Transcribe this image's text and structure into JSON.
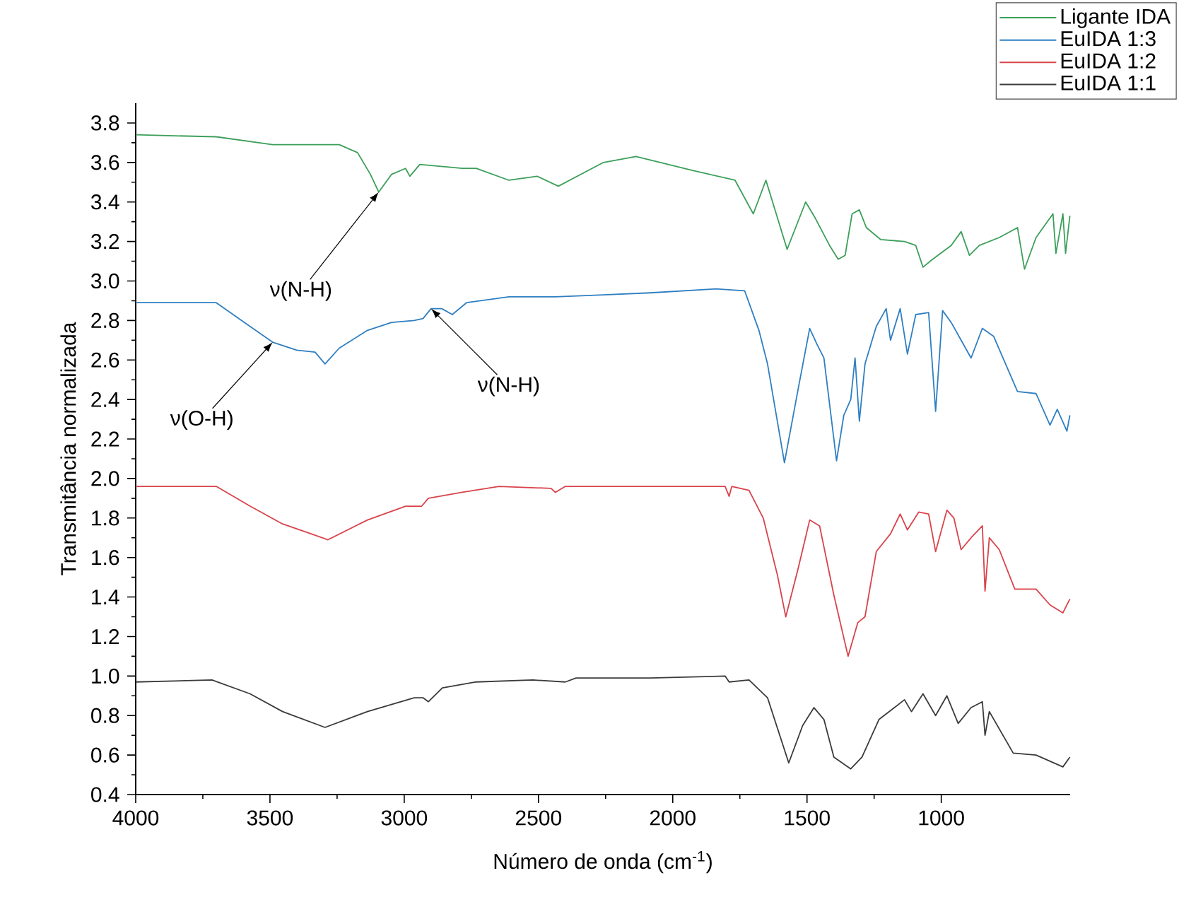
{
  "chart_data": {
    "type": "line",
    "xlabel": "Número de onda (cm$^{-1}$)",
    "ylabel": "Transmitância normalizada",
    "xlim": [
      4000,
      520
    ],
    "ylim": [
      0.4,
      3.9
    ],
    "xticks": [
      4000,
      3500,
      3000,
      2500,
      2000,
      1500,
      1000
    ],
    "yticks": [
      0.4,
      0.6,
      0.8,
      {
        "value": 1,
        "label": "1.0"
      },
      1.2,
      1.4,
      1.6,
      1.8,
      {
        "value": 2,
        "label": "2.0"
      },
      2.2,
      2.4,
      2.6,
      2.8,
      {
        "value": 3,
        "label": "3.0"
      },
      3.2,
      3.4,
      3.6,
      3.8
    ],
    "legend": "top right",
    "series": [
      {
        "name": "Ligante IDA",
        "color": "#3c9f5a",
        "x": [
          4000,
          3700,
          3490,
          3242,
          3174,
          3126,
          3095,
          3047,
          2995,
          2979,
          2942,
          2784,
          2732,
          2610,
          2505,
          2426,
          2258,
          2137,
          1926,
          1768,
          1700,
          1653,
          1574,
          1505,
          1470,
          1416,
          1384,
          1358,
          1332,
          1305,
          1279,
          1226,
          1137,
          1095,
          1068,
          1032,
          963,
          926,
          895,
          858,
          784,
          716,
          690,
          647,
          584,
          573,
          547,
          537,
          521
        ],
        "values": [
          3.74,
          3.73,
          3.69,
          3.69,
          3.65,
          3.54,
          3.45,
          3.54,
          3.57,
          3.53,
          3.59,
          3.57,
          3.57,
          3.51,
          3.53,
          3.48,
          3.6,
          3.63,
          3.56,
          3.51,
          3.34,
          3.51,
          3.16,
          3.4,
          3.32,
          3.18,
          3.11,
          3.13,
          3.34,
          3.36,
          3.27,
          3.21,
          3.2,
          3.18,
          3.07,
          3.11,
          3.18,
          3.25,
          3.13,
          3.18,
          3.22,
          3.27,
          3.06,
          3.22,
          3.34,
          3.14,
          3.34,
          3.14,
          3.33
        ]
      },
      {
        "name": "EuIDA 1:3",
        "color": "#2f7fc1",
        "x": [
          4000,
          3700,
          3595,
          3490,
          3400,
          3332,
          3295,
          3242,
          3137,
          3047,
          2963,
          2930,
          2900,
          2860,
          2821,
          2768,
          2610,
          2437,
          2258,
          2084,
          1837,
          1732,
          1679,
          1647,
          1584,
          1532,
          1490,
          1463,
          1437,
          1390,
          1363,
          1337,
          1321,
          1305,
          1284,
          1242,
          1205,
          1189,
          1153,
          1126,
          1095,
          1047,
          1021,
          995,
          963,
          926,
          889,
          847,
          805,
          716,
          647,
          595,
          568,
          532,
          521
        ],
        "values": [
          2.89,
          2.89,
          2.79,
          2.69,
          2.65,
          2.64,
          2.58,
          2.66,
          2.75,
          2.79,
          2.8,
          2.81,
          2.86,
          2.86,
          2.83,
          2.89,
          2.92,
          2.92,
          2.93,
          2.94,
          2.96,
          2.95,
          2.75,
          2.58,
          2.08,
          2.46,
          2.76,
          2.68,
          2.61,
          2.09,
          2.32,
          2.4,
          2.61,
          2.29,
          2.58,
          2.77,
          2.86,
          2.7,
          2.86,
          2.63,
          2.83,
          2.84,
          2.34,
          2.85,
          2.79,
          2.7,
          2.61,
          2.76,
          2.72,
          2.44,
          2.43,
          2.27,
          2.35,
          2.24,
          2.32
        ]
      },
      {
        "name": "EuIDA 1:2",
        "color": "#d9434b",
        "x": [
          4000,
          3700,
          3574,
          3453,
          3347,
          3284,
          3137,
          2995,
          2935,
          2910,
          2784,
          2647,
          2453,
          2437,
          2400,
          2084,
          1805,
          1790,
          1780,
          1716,
          1663,
          1610,
          1579,
          1532,
          1490,
          1453,
          1400,
          1347,
          1311,
          1284,
          1242,
          1189,
          1153,
          1126,
          1084,
          1047,
          1021,
          979,
          953,
          926,
          889,
          847,
          837,
          821,
          784,
          726,
          647,
          595,
          547,
          521
        ],
        "values": [
          1.96,
          1.96,
          1.86,
          1.77,
          1.72,
          1.69,
          1.79,
          1.86,
          1.86,
          1.9,
          1.93,
          1.96,
          1.95,
          1.93,
          1.96,
          1.96,
          1.96,
          1.91,
          1.96,
          1.94,
          1.8,
          1.51,
          1.3,
          1.55,
          1.79,
          1.76,
          1.41,
          1.1,
          1.27,
          1.3,
          1.63,
          1.72,
          1.82,
          1.74,
          1.83,
          1.82,
          1.63,
          1.84,
          1.8,
          1.64,
          1.7,
          1.76,
          1.43,
          1.7,
          1.64,
          1.44,
          1.44,
          1.36,
          1.32,
          1.39
        ]
      },
      {
        "name": "EuIDA 1:1",
        "color": "#3b3b3b",
        "x": [
          4000,
          3716,
          3574,
          3453,
          3295,
          3137,
          2963,
          2930,
          2910,
          2858,
          2732,
          2521,
          2400,
          2360,
          2084,
          1805,
          1790,
          1716,
          1647,
          1568,
          1516,
          1474,
          1437,
          1400,
          1337,
          1295,
          1232,
          1137,
          1111,
          1068,
          1021,
          979,
          937,
          889,
          847,
          837,
          821,
          732,
          647,
          547,
          521
        ],
        "values": [
          0.97,
          0.98,
          0.91,
          0.82,
          0.74,
          0.82,
          0.89,
          0.89,
          0.87,
          0.94,
          0.97,
          0.98,
          0.97,
          0.99,
          0.99,
          1.0,
          0.97,
          0.98,
          0.89,
          0.56,
          0.75,
          0.84,
          0.78,
          0.59,
          0.53,
          0.59,
          0.78,
          0.88,
          0.82,
          0.91,
          0.8,
          0.9,
          0.76,
          0.84,
          0.87,
          0.7,
          0.82,
          0.61,
          0.6,
          0.54,
          0.59
        ]
      }
    ],
    "annotations": [
      {
        "text": "ν(N-H)",
        "x": 3095,
        "y": 3.45
      },
      {
        "text": "ν(O-H)",
        "x": 3490,
        "y": 2.69
      },
      {
        "text": "ν(N-H)",
        "x": 2900,
        "y": 2.86
      }
    ]
  }
}
